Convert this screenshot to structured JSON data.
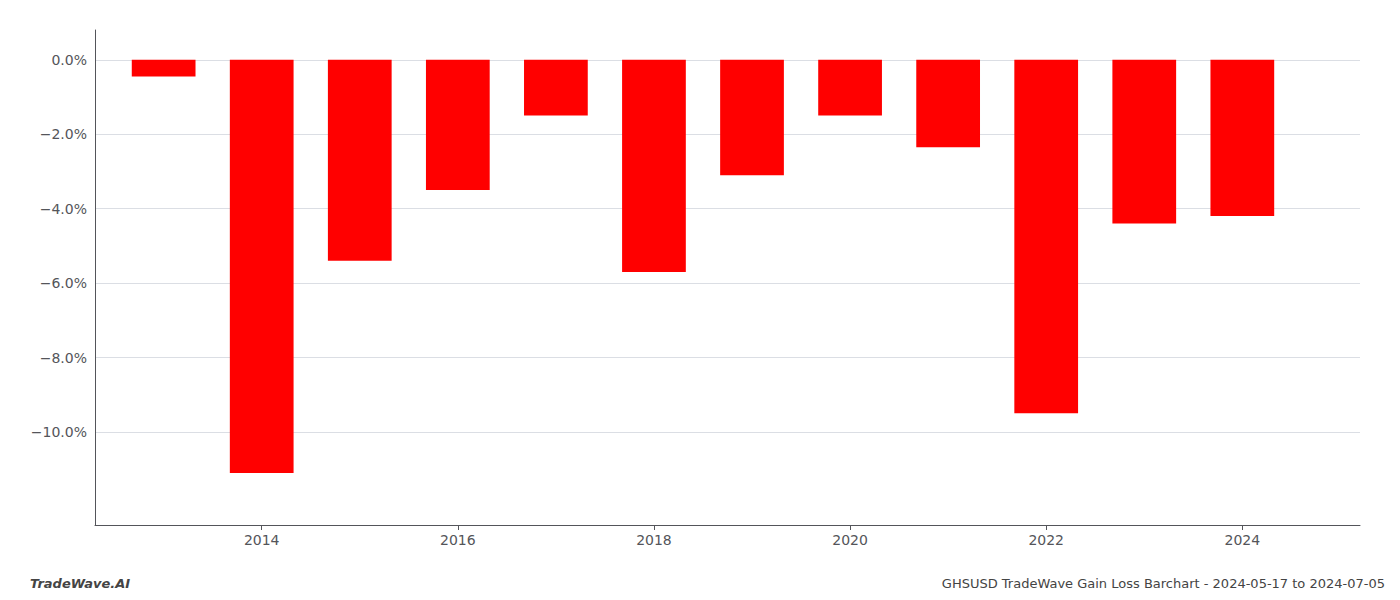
{
  "chart_data": {
    "type": "bar",
    "x": [
      2013,
      2014,
      2015,
      2016,
      2017,
      2018,
      2019,
      2020,
      2021,
      2022,
      2023,
      2024
    ],
    "values": [
      -0.45,
      -11.1,
      -5.4,
      -3.5,
      -1.5,
      -5.7,
      -3.1,
      -1.5,
      -2.35,
      -9.5,
      -4.4,
      -4.2
    ],
    "color": "#ff0000",
    "xlim": [
      2012.3,
      2025.2
    ],
    "xticks": [
      2014,
      2016,
      2018,
      2020,
      2022,
      2024
    ],
    "ylim": [
      -12.5,
      0.8
    ],
    "yticks": [
      {
        "value": 0.0,
        "label": "0.0%"
      },
      {
        "value": -2.0,
        "label": "−2.0%"
      },
      {
        "value": -4.0,
        "label": "−4.0%"
      },
      {
        "value": -6.0,
        "label": "−6.0%"
      },
      {
        "value": -8.0,
        "label": "−8.0%"
      },
      {
        "value": -10.0,
        "label": "−10.0%"
      }
    ],
    "grid": true,
    "annotations": [
      "TradeWave.AI",
      "GHSUSD TradeWave Gain Loss Barchart - 2024-05-17 to 2024-07-05"
    ]
  }
}
